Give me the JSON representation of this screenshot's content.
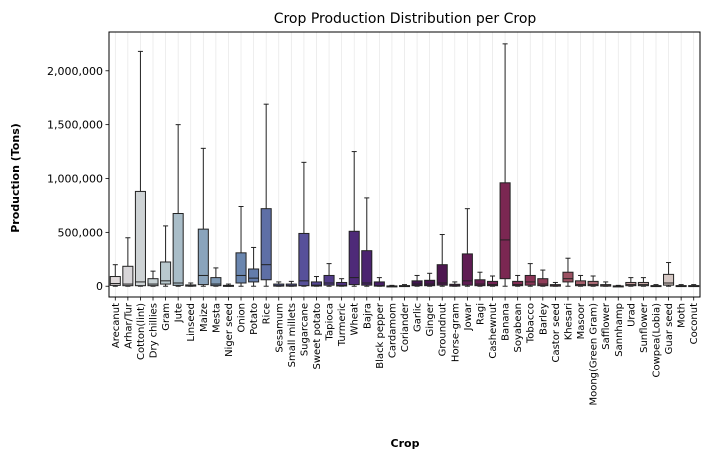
{
  "chart_data": {
    "type": "box",
    "title": "Crop Production Distribution per Crop",
    "xlabel": "Crop",
    "ylabel": "Production (Tons)",
    "ylim": [
      -100000,
      2360000
    ],
    "yticks": [
      0,
      500000,
      1000000,
      1500000,
      2000000
    ],
    "ytick_labels": [
      "0",
      "500,000",
      "1,000,000",
      "1,500,000",
      "2,000,000"
    ],
    "grid": "vertical",
    "series": [
      {
        "category": "Arecanut",
        "whisker_low": 0,
        "q1": 8000,
        "median": 25000,
        "q3": 90000,
        "whisker_high": 200000,
        "color": "#e0dadb"
      },
      {
        "category": "Arhar/Tur",
        "whisker_low": 0,
        "q1": 5000,
        "median": 20000,
        "q3": 185000,
        "whisker_high": 450000,
        "color": "#d8d6d9"
      },
      {
        "category": "Cotton(lint)",
        "whisker_low": 0,
        "q1": 5000,
        "median": 40000,
        "q3": 880000,
        "whisker_high": 2180000,
        "color": "#ced3d5"
      },
      {
        "category": "Dry chillies",
        "whisker_low": 0,
        "q1": 5000,
        "median": 20000,
        "q3": 70000,
        "whisker_high": 140000,
        "color": "#c6d0d3"
      },
      {
        "category": "Gram",
        "whisker_low": 0,
        "q1": 20000,
        "median": 50000,
        "q3": 225000,
        "whisker_high": 560000,
        "color": "#b9c9ce"
      },
      {
        "category": "Jute",
        "whisker_low": 0,
        "q1": 8000,
        "median": 30000,
        "q3": 675000,
        "whisker_high": 1500000,
        "color": "#a9bdc8"
      },
      {
        "category": "Linseed",
        "whisker_low": 0,
        "q1": 1000,
        "median": 3000,
        "q3": 12000,
        "whisker_high": 30000,
        "color": "#9db4c4"
      },
      {
        "category": "Maize",
        "whisker_low": 0,
        "q1": 15000,
        "median": 100000,
        "q3": 530000,
        "whisker_high": 1280000,
        "color": "#8aa4bc"
      },
      {
        "category": "Mesta",
        "whisker_low": 0,
        "q1": 5000,
        "median": 20000,
        "q3": 80000,
        "whisker_high": 170000,
        "color": "#7e9ab6"
      },
      {
        "category": "Niger seed",
        "whisker_low": 0,
        "q1": 500,
        "median": 2000,
        "q3": 8000,
        "whisker_high": 20000,
        "color": "#7490b2"
      },
      {
        "category": "Onion",
        "whisker_low": 0,
        "q1": 30000,
        "median": 100000,
        "q3": 310000,
        "whisker_high": 740000,
        "color": "#6a86af"
      },
      {
        "category": "Potato",
        "whisker_low": 0,
        "q1": 40000,
        "median": 75000,
        "q3": 160000,
        "whisker_high": 360000,
        "color": "#637cab"
      },
      {
        "category": "Rice",
        "whisker_low": 0,
        "q1": 60000,
        "median": 200000,
        "q3": 720000,
        "whisker_high": 1690000,
        "color": "#5e6fa6"
      },
      {
        "category": "Sesamum",
        "whisker_low": 0,
        "q1": 1000,
        "median": 5000,
        "q3": 20000,
        "whisker_high": 40000,
        "color": "#5b64a2"
      },
      {
        "category": "Small millets",
        "whisker_low": 0,
        "q1": 1000,
        "median": 5000,
        "q3": 20000,
        "whisker_high": 45000,
        "color": "#5a599e"
      },
      {
        "category": "Sugarcane",
        "whisker_low": 0,
        "q1": 5000,
        "median": 50000,
        "q3": 490000,
        "whisker_high": 1150000,
        "color": "#57509a"
      },
      {
        "category": "Sweet potato",
        "whisker_low": 0,
        "q1": 2000,
        "median": 10000,
        "q3": 40000,
        "whisker_high": 90000,
        "color": "#554693"
      },
      {
        "category": "Tapioca",
        "whisker_low": 0,
        "q1": 10000,
        "median": 30000,
        "q3": 100000,
        "whisker_high": 210000,
        "color": "#523c8a"
      },
      {
        "category": "Turmeric",
        "whisker_low": 0,
        "q1": 2000,
        "median": 8000,
        "q3": 35000,
        "whisker_high": 70000,
        "color": "#503381"
      },
      {
        "category": "Wheat",
        "whisker_low": 0,
        "q1": 15000,
        "median": 80000,
        "q3": 510000,
        "whisker_high": 1250000,
        "color": "#4e2a78"
      },
      {
        "category": "Bajra",
        "whisker_low": 0,
        "q1": 10000,
        "median": 30000,
        "q3": 330000,
        "whisker_high": 820000,
        "color": "#4b2470"
      },
      {
        "category": "Black pepper",
        "whisker_low": 0,
        "q1": 1000,
        "median": 5000,
        "q3": 40000,
        "whisker_high": 80000,
        "color": "#461e66"
      },
      {
        "category": "Cardamom",
        "whisker_low": 0,
        "q1": 500,
        "median": 1000,
        "q3": 3000,
        "whisker_high": 8000,
        "color": "#42195d"
      },
      {
        "category": "Coriander",
        "whisker_low": 0,
        "q1": 500,
        "median": 2000,
        "q3": 6000,
        "whisker_high": 15000,
        "color": "#3f1655"
      },
      {
        "category": "Garlic",
        "whisker_low": 0,
        "q1": 5000,
        "median": 20000,
        "q3": 50000,
        "whisker_high": 100000,
        "color": "#411551"
      },
      {
        "category": "Ginger",
        "whisker_low": 0,
        "q1": 5000,
        "median": 20000,
        "q3": 55000,
        "whisker_high": 120000,
        "color": "#46154f"
      },
      {
        "category": "Groundnut",
        "whisker_low": 0,
        "q1": 10000,
        "median": 30000,
        "q3": 200000,
        "whisker_high": 480000,
        "color": "#4d1750"
      },
      {
        "category": "Horse-gram",
        "whisker_low": 0,
        "q1": 1000,
        "median": 5000,
        "q3": 18000,
        "whisker_high": 40000,
        "color": "#561a52"
      },
      {
        "category": "Jowar",
        "whisker_low": 0,
        "q1": 10000,
        "median": 50000,
        "q3": 300000,
        "whisker_high": 720000,
        "color": "#5f1c53"
      },
      {
        "category": "Ragi",
        "whisker_low": 0,
        "q1": 5000,
        "median": 20000,
        "q3": 60000,
        "whisker_high": 130000,
        "color": "#681e53"
      },
      {
        "category": "Cashewnut",
        "whisker_low": 0,
        "q1": 5000,
        "median": 15000,
        "q3": 45000,
        "whisker_high": 95000,
        "color": "#722253"
      },
      {
        "category": "Banana",
        "whisker_low": 0,
        "q1": 70000,
        "median": 430000,
        "q3": 960000,
        "whisker_high": 2250000,
        "color": "#7b2752"
      },
      {
        "category": "Soyabean",
        "whisker_low": 0,
        "q1": 5000,
        "median": 15000,
        "q3": 45000,
        "whisker_high": 100000,
        "color": "#822d54"
      },
      {
        "category": "Tobacco",
        "whisker_low": 0,
        "q1": 10000,
        "median": 40000,
        "q3": 100000,
        "whisker_high": 210000,
        "color": "#8a3456"
      },
      {
        "category": "Barley",
        "whisker_low": 0,
        "q1": 5000,
        "median": 20000,
        "q3": 70000,
        "whisker_high": 150000,
        "color": "#903c58"
      },
      {
        "category": "Castor seed",
        "whisker_low": 0,
        "q1": 1000,
        "median": 5000,
        "q3": 15000,
        "whisker_high": 35000,
        "color": "#97465d"
      },
      {
        "category": "Khesari",
        "whisker_low": 0,
        "q1": 40000,
        "median": 70000,
        "q3": 130000,
        "whisker_high": 260000,
        "color": "#9c5162"
      },
      {
        "category": "Masoor",
        "whisker_low": 0,
        "q1": 5000,
        "median": 15000,
        "q3": 50000,
        "whisker_high": 100000,
        "color": "#a35d6a"
      },
      {
        "category": "Moong(Green Gram)",
        "whisker_low": 0,
        "q1": 5000,
        "median": 15000,
        "q3": 45000,
        "whisker_high": 95000,
        "color": "#aa6b75"
      },
      {
        "category": "Safflower",
        "whisker_low": 0,
        "q1": 1000,
        "median": 5000,
        "q3": 15000,
        "whisker_high": 40000,
        "color": "#b17b81"
      },
      {
        "category": "Sannhamp",
        "whisker_low": 0,
        "q1": 500,
        "median": 1000,
        "q3": 3000,
        "whisker_high": 8000,
        "color": "#b88b8e"
      },
      {
        "category": "Urad",
        "whisker_low": 0,
        "q1": 5000,
        "median": 15000,
        "q3": 35000,
        "whisker_high": 80000,
        "color": "#c09b9c"
      },
      {
        "category": "Sunflower",
        "whisker_low": 0,
        "q1": 5000,
        "median": 15000,
        "q3": 35000,
        "whisker_high": 80000,
        "color": "#c7aba9"
      },
      {
        "category": "Cowpea(Lobia)",
        "whisker_low": 0,
        "q1": 500,
        "median": 2000,
        "q3": 6000,
        "whisker_high": 15000,
        "color": "#cebab6"
      },
      {
        "category": "Guar seed",
        "whisker_low": 0,
        "q1": 10000,
        "median": 30000,
        "q3": 110000,
        "whisker_high": 220000,
        "color": "#d5c7c3"
      },
      {
        "category": "Moth",
        "whisker_low": 0,
        "q1": 500,
        "median": 2000,
        "q3": 6000,
        "whisker_high": 15000,
        "color": "#dad1ce"
      },
      {
        "category": "Coconut",
        "whisker_low": 0,
        "q1": 500,
        "median": 2000,
        "q3": 6000,
        "whisker_high": 15000,
        "color": "#dfd9d7"
      }
    ]
  }
}
